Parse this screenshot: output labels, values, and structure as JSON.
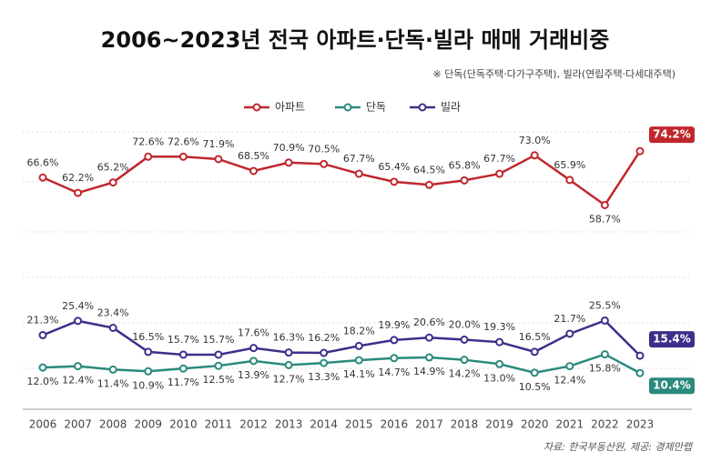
{
  "chart_data": {
    "type": "line",
    "title": "2006~2023년 전국 아파트·단독·빌라 매매 거래비중",
    "subtitle": "※ 단독(단독주택·다가구주택), 빌라(연립주택·다세대주택)",
    "source": "자료: 한국부동산원, 제공: 경제만랩",
    "categories": [
      "2006",
      "2007",
      "2008",
      "2009",
      "2010",
      "2011",
      "2012",
      "2013",
      "2014",
      "2015",
      "2016",
      "2017",
      "2018",
      "2019",
      "2020",
      "2021",
      "2022",
      "2023"
    ],
    "ylim": [
      0,
      80
    ],
    "series": [
      {
        "name": "아파트",
        "color": "#c0272d",
        "values": [
          66.6,
          62.2,
          65.2,
          72.6,
          72.6,
          71.9,
          68.5,
          70.9,
          70.5,
          67.7,
          65.4,
          64.5,
          65.8,
          67.7,
          73.0,
          65.9,
          58.7,
          74.2
        ],
        "value_labels": [
          "66.6%",
          "62.2%",
          "65.2%",
          "72.6%",
          "72.6%",
          "71.9%",
          "68.5%",
          "70.9%",
          "70.5%",
          "67.7%",
          "65.4%",
          "64.5%",
          "65.8%",
          "67.7%",
          "73.0%",
          "65.9%",
          "58.7%",
          "74.2%"
        ]
      },
      {
        "name": "단독",
        "color": "#2a8a7e",
        "values": [
          12.0,
          12.4,
          11.4,
          10.9,
          11.7,
          12.5,
          13.9,
          12.7,
          13.3,
          14.1,
          14.7,
          14.9,
          14.2,
          13.0,
          10.5,
          12.4,
          15.8,
          10.4
        ],
        "value_labels": [
          "12.0%",
          "12.4%",
          "11.4%",
          "10.9%",
          "11.7%",
          "12.5%",
          "13.9%",
          "12.7%",
          "13.3%",
          "14.1%",
          "14.7%",
          "14.9%",
          "14.2%",
          "13.0%",
          "10.5%",
          "12.4%",
          "15.8%",
          "10.4%"
        ]
      },
      {
        "name": "빌라",
        "color": "#3d2f8a",
        "values": [
          21.3,
          25.4,
          23.4,
          16.5,
          15.7,
          15.7,
          17.6,
          16.3,
          16.2,
          18.2,
          19.9,
          20.6,
          20.0,
          19.3,
          16.5,
          21.7,
          25.5,
          15.4
        ],
        "value_labels": [
          "21.3%",
          "25.4%",
          "23.4%",
          "16.5%",
          "15.7%",
          "15.7%",
          "17.6%",
          "16.3%",
          "16.2%",
          "18.2%",
          "19.9%",
          "20.6%",
          "20.0%",
          "19.3%",
          "16.5%",
          "21.7%",
          "25.5%",
          "15.4%"
        ]
      }
    ]
  }
}
